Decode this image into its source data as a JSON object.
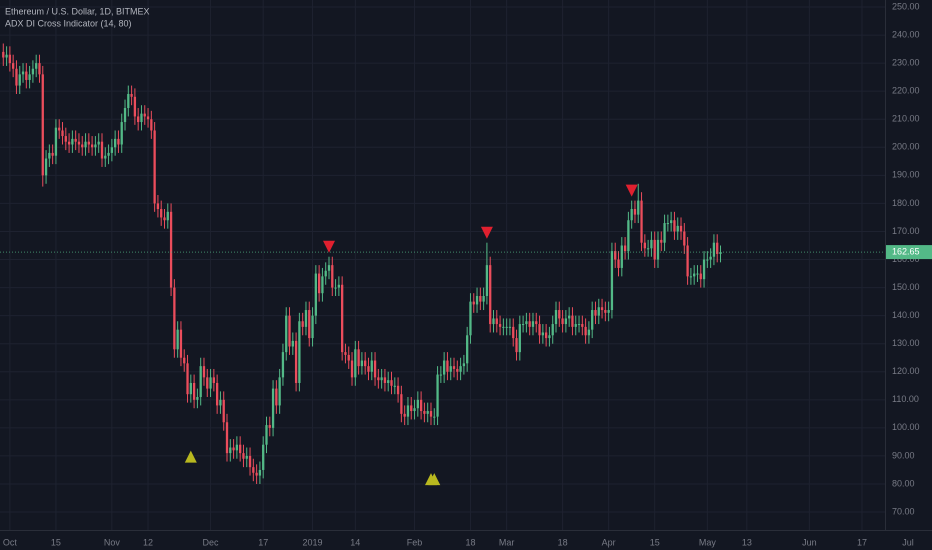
{
  "chart_data": {
    "type": "candlestick",
    "title": "Ethereum / U.S. Dollar, 1D, BITMEX",
    "subtitle": "ADX DI Cross Indicator (14, 80)",
    "x": [
      "2018-09-29",
      "2018-09-30",
      "2018-10-01",
      "2018-10-02",
      "2018-10-03",
      "2018-10-04",
      "2018-10-05",
      "2018-10-06",
      "2018-10-07",
      "2018-10-08",
      "2018-10-09",
      "2018-10-10",
      "2018-10-11",
      "2018-10-12",
      "2018-10-13",
      "2018-10-14",
      "2018-10-15",
      "2018-10-16",
      "2018-10-17",
      "2018-10-18",
      "2018-10-19",
      "2018-10-20",
      "2018-10-21",
      "2018-10-22",
      "2018-10-23",
      "2018-10-24",
      "2018-10-25",
      "2018-10-26",
      "2018-10-27",
      "2018-10-28",
      "2018-10-29",
      "2018-10-30",
      "2018-10-31",
      "2018-11-01",
      "2018-11-02",
      "2018-11-03",
      "2018-11-04",
      "2018-11-05",
      "2018-11-06",
      "2018-11-07",
      "2018-11-08",
      "2018-11-09",
      "2018-11-10",
      "2018-11-11",
      "2018-11-12",
      "2018-11-13",
      "2018-11-14",
      "2018-11-15",
      "2018-11-16",
      "2018-11-17",
      "2018-11-18",
      "2018-11-19",
      "2018-11-20",
      "2018-11-21",
      "2018-11-22",
      "2018-11-23",
      "2018-11-24",
      "2018-11-25",
      "2018-11-26",
      "2018-11-27",
      "2018-11-28",
      "2018-11-29",
      "2018-11-30",
      "2018-12-01",
      "2018-12-02",
      "2018-12-03",
      "2018-12-04",
      "2018-12-05",
      "2018-12-06",
      "2018-12-07",
      "2018-12-08",
      "2018-12-09",
      "2018-12-10",
      "2018-12-11",
      "2018-12-12",
      "2018-12-13",
      "2018-12-14",
      "2018-12-15",
      "2018-12-16",
      "2018-12-17",
      "2018-12-18",
      "2018-12-19",
      "2018-12-20",
      "2018-12-21",
      "2018-12-22",
      "2018-12-23",
      "2018-12-24",
      "2018-12-25",
      "2018-12-26",
      "2018-12-27",
      "2018-12-28",
      "2018-12-29",
      "2018-12-30",
      "2018-12-31",
      "2019-01-01",
      "2019-01-02",
      "2019-01-03",
      "2019-01-04",
      "2019-01-05",
      "2019-01-06",
      "2019-01-07",
      "2019-01-08",
      "2019-01-09",
      "2019-01-10",
      "2019-01-11",
      "2019-01-12",
      "2019-01-13",
      "2019-01-14",
      "2019-01-15",
      "2019-01-16",
      "2019-01-17",
      "2019-01-18",
      "2019-01-19",
      "2019-01-20",
      "2019-01-21",
      "2019-01-22",
      "2019-01-23",
      "2019-01-24",
      "2019-01-25",
      "2019-01-26",
      "2019-01-27",
      "2019-01-28",
      "2019-01-29",
      "2019-01-30",
      "2019-01-31",
      "2019-02-01",
      "2019-02-02",
      "2019-02-03",
      "2019-02-04",
      "2019-02-05",
      "2019-02-06",
      "2019-02-07",
      "2019-02-08",
      "2019-02-09",
      "2019-02-10",
      "2019-02-11",
      "2019-02-12",
      "2019-02-13",
      "2019-02-14",
      "2019-02-15",
      "2019-02-16",
      "2019-02-17",
      "2019-02-18",
      "2019-02-19",
      "2019-02-20",
      "2019-02-21",
      "2019-02-22",
      "2019-02-23",
      "2019-02-24",
      "2019-02-25",
      "2019-02-26",
      "2019-02-27",
      "2019-02-28",
      "2019-03-01",
      "2019-03-02",
      "2019-03-03",
      "2019-03-04",
      "2019-03-05",
      "2019-03-06",
      "2019-03-07",
      "2019-03-08",
      "2019-03-09",
      "2019-03-10",
      "2019-03-11",
      "2019-03-12",
      "2019-03-13",
      "2019-03-14",
      "2019-03-15",
      "2019-03-16",
      "2019-03-17",
      "2019-03-18",
      "2019-03-19",
      "2019-03-20",
      "2019-03-21",
      "2019-03-22",
      "2019-03-23",
      "2019-03-24",
      "2019-03-25",
      "2019-03-26",
      "2019-03-27",
      "2019-03-28",
      "2019-03-29",
      "2019-03-30",
      "2019-03-31",
      "2019-04-01",
      "2019-04-02",
      "2019-04-03",
      "2019-04-04",
      "2019-04-05",
      "2019-04-06",
      "2019-04-07",
      "2019-04-08",
      "2019-04-09",
      "2019-04-10",
      "2019-04-11",
      "2019-04-12",
      "2019-04-13",
      "2019-04-14",
      "2019-04-15",
      "2019-04-16",
      "2019-04-17",
      "2019-04-18",
      "2019-04-19",
      "2019-04-20",
      "2019-04-21",
      "2019-04-22",
      "2019-04-23",
      "2019-04-24",
      "2019-04-25",
      "2019-04-26",
      "2019-04-27",
      "2019-04-28",
      "2019-04-29",
      "2019-04-30",
      "2019-05-01",
      "2019-05-02",
      "2019-05-03",
      "2019-05-04",
      "2019-05-05"
    ],
    "open": [
      234,
      232,
      233,
      230,
      228,
      222,
      226,
      227,
      224,
      226,
      228,
      230,
      226,
      190,
      196,
      198,
      197,
      207,
      206,
      204,
      202,
      201,
      203,
      202,
      201,
      200,
      202,
      201,
      200,
      201,
      202,
      196,
      197,
      198,
      200,
      203,
      201,
      209,
      214,
      219,
      218,
      211,
      209,
      212,
      211,
      210,
      206,
      180,
      178,
      175,
      174,
      177,
      150,
      128,
      135,
      125,
      123,
      112,
      116,
      110,
      111,
      122,
      118,
      114,
      118,
      116,
      108,
      110,
      102,
      91,
      93,
      92,
      94,
      91,
      89,
      90,
      86,
      84,
      83,
      85,
      94,
      101,
      100,
      114,
      108,
      118,
      127,
      140,
      129,
      131,
      116,
      138,
      136,
      142,
      132,
      140,
      155,
      148,
      154,
      156,
      158,
      150,
      150,
      151,
      127,
      126,
      124,
      118,
      128,
      122,
      124,
      122,
      120,
      124,
      118,
      117,
      118,
      116,
      117,
      115,
      115,
      112,
      105,
      104,
      108,
      106,
      107,
      110,
      106,
      105,
      106,
      104,
      104,
      119,
      119,
      124,
      120,
      122,
      121,
      120,
      122,
      123,
      133,
      145,
      144,
      147,
      145,
      147,
      158,
      137,
      139,
      137,
      136,
      136,
      136,
      136,
      132,
      127,
      137,
      137,
      138,
      136,
      138,
      137,
      133,
      134,
      132,
      133,
      137,
      142,
      139,
      137,
      139,
      140,
      136,
      137,
      137,
      136,
      133,
      135,
      142,
      140,
      143,
      142,
      141,
      142,
      163,
      160,
      157,
      165,
      163,
      174,
      178,
      176,
      181,
      166,
      164,
      164,
      167,
      160,
      167,
      166,
      173,
      173,
      174,
      170,
      172,
      170,
      165,
      154,
      154,
      155,
      155,
      153,
      160,
      160,
      161,
      166,
      162
    ],
    "high": [
      237,
      236,
      236,
      233,
      231,
      229,
      230,
      230,
      229,
      231,
      233,
      233,
      229,
      199,
      201,
      201,
      210,
      210,
      209,
      207,
      205,
      206,
      206,
      205,
      204,
      205,
      205,
      204,
      204,
      205,
      205,
      200,
      201,
      203,
      206,
      206,
      212,
      217,
      222,
      222,
      221,
      214,
      215,
      215,
      214,
      213,
      209,
      183,
      181,
      178,
      180,
      180,
      153,
      138,
      138,
      128,
      126,
      119,
      119,
      114,
      125,
      125,
      121,
      121,
      121,
      119,
      113,
      113,
      105,
      96,
      96,
      97,
      97,
      94,
      93,
      93,
      89,
      87,
      88,
      97,
      104,
      104,
      117,
      117,
      121,
      130,
      143,
      143,
      134,
      134,
      141,
      141,
      145,
      145,
      143,
      158,
      158,
      157,
      159,
      161,
      161,
      153,
      154,
      154,
      130,
      129,
      127,
      131,
      131,
      127,
      127,
      125,
      127,
      127,
      121,
      121,
      121,
      120,
      120,
      118,
      118,
      115,
      108,
      111,
      111,
      110,
      113,
      113,
      109,
      109,
      109,
      107,
      122,
      122,
      127,
      127,
      125,
      125,
      124,
      125,
      126,
      136,
      148,
      148,
      150,
      150,
      150,
      166,
      161,
      142,
      142,
      140,
      139,
      139,
      139,
      139,
      135,
      140,
      140,
      141,
      141,
      141,
      141,
      140,
      137,
      137,
      136,
      140,
      145,
      145,
      142,
      142,
      143,
      143,
      140,
      140,
      140,
      139,
      138,
      145,
      145,
      146,
      146,
      145,
      145,
      166,
      166,
      163,
      168,
      168,
      177,
      181,
      181,
      187,
      184,
      169,
      167,
      170,
      170,
      170,
      170,
      176,
      176,
      177,
      177,
      175,
      175,
      173,
      168,
      157,
      158,
      158,
      158,
      163,
      163,
      164,
      169,
      169,
      165
    ],
    "low": [
      229,
      229,
      227,
      225,
      219,
      219,
      223,
      221,
      221,
      223,
      225,
      223,
      186,
      187,
      193,
      194,
      194,
      203,
      201,
      199,
      198,
      198,
      199,
      198,
      197,
      197,
      198,
      197,
      197,
      198,
      193,
      193,
      194,
      195,
      197,
      198,
      198,
      206,
      211,
      215,
      208,
      206,
      206,
      208,
      207,
      203,
      177,
      175,
      172,
      171,
      171,
      147,
      125,
      125,
      122,
      120,
      109,
      109,
      107,
      107,
      108,
      115,
      111,
      111,
      113,
      105,
      105,
      99,
      88,
      88,
      89,
      89,
      88,
      86,
      86,
      83,
      81,
      80,
      80,
      82,
      91,
      97,
      97,
      105,
      105,
      115,
      124,
      126,
      126,
      113,
      113,
      133,
      133,
      129,
      129,
      137,
      145,
      145,
      151,
      153,
      147,
      147,
      147,
      124,
      123,
      121,
      115,
      115,
      119,
      119,
      119,
      117,
      117,
      115,
      114,
      114,
      113,
      113,
      112,
      112,
      109,
      102,
      101,
      101,
      103,
      103,
      104,
      103,
      102,
      102,
      101,
      101,
      101,
      116,
      116,
      117,
      117,
      118,
      117,
      117,
      119,
      120,
      130,
      141,
      141,
      142,
      142,
      144,
      134,
      134,
      134,
      133,
      133,
      133,
      133,
      129,
      124,
      124,
      134,
      134,
      133,
      133,
      134,
      130,
      130,
      129,
      129,
      130,
      134,
      136,
      134,
      134,
      136,
      133,
      133,
      134,
      133,
      130,
      130,
      132,
      137,
      137,
      139,
      138,
      138,
      139,
      157,
      154,
      154,
      160,
      160,
      171,
      173,
      173,
      163,
      161,
      161,
      161,
      157,
      157,
      163,
      163,
      170,
      170,
      167,
      167,
      167,
      162,
      151,
      151,
      151,
      152,
      150,
      150,
      157,
      157,
      158,
      159,
      159
    ],
    "close": [
      232,
      233,
      230,
      228,
      222,
      226,
      227,
      224,
      226,
      228,
      230,
      226,
      190,
      196,
      198,
      197,
      207,
      206,
      204,
      202,
      201,
      203,
      202,
      201,
      200,
      202,
      201,
      200,
      201,
      202,
      196,
      197,
      198,
      200,
      203,
      201,
      209,
      214,
      219,
      218,
      211,
      209,
      212,
      211,
      210,
      206,
      180,
      178,
      175,
      174,
      177,
      150,
      128,
      135,
      125,
      123,
      112,
      116,
      110,
      111,
      122,
      118,
      114,
      118,
      116,
      108,
      110,
      102,
      91,
      93,
      92,
      94,
      91,
      89,
      90,
      86,
      84,
      83,
      85,
      94,
      101,
      100,
      114,
      108,
      118,
      127,
      140,
      129,
      131,
      116,
      138,
      136,
      142,
      132,
      140,
      155,
      148,
      154,
      156,
      158,
      150,
      150,
      151,
      127,
      126,
      124,
      118,
      128,
      122,
      124,
      122,
      120,
      124,
      118,
      117,
      118,
      116,
      117,
      115,
      115,
      112,
      105,
      104,
      108,
      106,
      107,
      110,
      106,
      105,
      106,
      104,
      104,
      119,
      119,
      124,
      120,
      122,
      121,
      120,
      122,
      123,
      133,
      145,
      144,
      147,
      145,
      147,
      158,
      137,
      139,
      137,
      136,
      136,
      136,
      136,
      132,
      127,
      137,
      137,
      138,
      136,
      138,
      137,
      133,
      134,
      132,
      133,
      137,
      142,
      139,
      137,
      139,
      140,
      136,
      137,
      137,
      136,
      133,
      135,
      142,
      140,
      143,
      142,
      141,
      142,
      163,
      160,
      157,
      165,
      163,
      174,
      178,
      176,
      181,
      166,
      164,
      164,
      167,
      160,
      167,
      166,
      173,
      173,
      174,
      170,
      172,
      170,
      165,
      154,
      154,
      155,
      155,
      153,
      160,
      160,
      161,
      166,
      162,
      162.65
    ],
    "up_color": "#53b987",
    "down_color": "#eb4d5c",
    "buy_signals": {
      "x": [
        "2018-11-25",
        "2019-02-06",
        "2019-02-07"
      ],
      "color": "#b8b81f"
    },
    "sell_signals": {
      "x": [
        "2019-01-06",
        "2019-02-23",
        "2019-04-08"
      ],
      "color": "#e0202f"
    },
    "xlim": [
      "2018-09-28",
      "2019-06-24"
    ],
    "xticks": [
      {
        "value": "2018-10-01",
        "label": "Oct"
      },
      {
        "value": "2018-10-15",
        "label": "15"
      },
      {
        "value": "2018-11-01",
        "label": "Nov"
      },
      {
        "value": "2018-11-12",
        "label": "12"
      },
      {
        "value": "2018-12-01",
        "label": "Dec"
      },
      {
        "value": "2018-12-17",
        "label": "17"
      },
      {
        "value": "2019-01-01",
        "label": "2019"
      },
      {
        "value": "2019-01-14",
        "label": "14"
      },
      {
        "value": "2019-02-01",
        "label": "Feb"
      },
      {
        "value": "2019-02-18",
        "label": "18"
      },
      {
        "value": "2019-03-01",
        "label": "Mar"
      },
      {
        "value": "2019-03-18",
        "label": "18"
      },
      {
        "value": "2019-04-01",
        "label": "Apr"
      },
      {
        "value": "2019-04-15",
        "label": "15"
      },
      {
        "value": "2019-05-01",
        "label": "May"
      },
      {
        "value": "2019-05-13",
        "label": "13"
      },
      {
        "value": "2019-06-01",
        "label": "Jun"
      },
      {
        "value": "2019-06-17",
        "label": "17"
      },
      {
        "value": "2019-07-01",
        "label": "Jul"
      }
    ],
    "ylim": [
      63.6,
      252.5
    ],
    "yticks": [
      {
        "value": 70,
        "label": "70.00"
      },
      {
        "value": 80,
        "label": "80.00"
      },
      {
        "value": 90,
        "label": "90.00"
      },
      {
        "value": 100,
        "label": "100.00"
      },
      {
        "value": 110,
        "label": "110.00"
      },
      {
        "value": 120,
        "label": "120.00"
      },
      {
        "value": 130,
        "label": "130.00"
      },
      {
        "value": 140,
        "label": "140.00"
      },
      {
        "value": 150,
        "label": "150.00"
      },
      {
        "value": 160,
        "label": "160.00"
      },
      {
        "value": 170,
        "label": "170.00"
      },
      {
        "value": 180,
        "label": "180.00"
      },
      {
        "value": 190,
        "label": "190.00"
      },
      {
        "value": 200,
        "label": "200.00"
      },
      {
        "value": 210,
        "label": "210.00"
      },
      {
        "value": 220,
        "label": "220.00"
      },
      {
        "value": 230,
        "label": "230.00"
      },
      {
        "value": 240,
        "label": "240.00"
      },
      {
        "value": 250,
        "label": "250.00"
      }
    ],
    "grid": true
  }
}
